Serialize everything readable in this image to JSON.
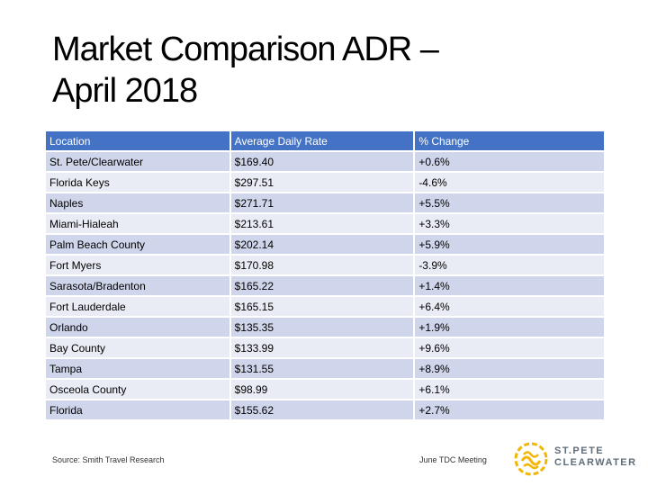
{
  "slide": {
    "title_line1": "Market Comparison ADR –",
    "title_line2": "April 2018"
  },
  "table": {
    "headers": [
      "Location",
      "Average Daily Rate",
      "% Change"
    ],
    "rows": [
      [
        "St. Pete/Clearwater",
        "$169.40",
        "+0.6%"
      ],
      [
        "Florida Keys",
        "$297.51",
        "-4.6%"
      ],
      [
        "Naples",
        "$271.71",
        "+5.5%"
      ],
      [
        "Miami-Hialeah",
        "$213.61",
        "+3.3%"
      ],
      [
        "Palm Beach County",
        "$202.14",
        "+5.9%"
      ],
      [
        "Fort Myers",
        "$170.98",
        "-3.9%"
      ],
      [
        "Sarasota/Bradenton",
        "$165.22",
        "+1.4%"
      ],
      [
        "Fort Lauderdale",
        "$165.15",
        "+6.4%"
      ],
      [
        "Orlando",
        "$135.35",
        "+1.9%"
      ],
      [
        "Bay County",
        "$133.99",
        "+9.6%"
      ],
      [
        "Tampa",
        "$131.55",
        "+8.9%"
      ],
      [
        "Osceola County",
        "$98.99",
        "+6.1%"
      ],
      [
        "Florida",
        "$155.62",
        "+2.7%"
      ]
    ]
  },
  "footer": {
    "source": "Source: Smith Travel Research",
    "meeting": "June TDC Meeting",
    "logo_line1": "ST.PETE",
    "logo_line2": "CLEARWATER"
  },
  "colors": {
    "header_bg": "#4472c4",
    "row_odd": "#cfd5ea",
    "row_even": "#e9ebf5",
    "logo_gold": "#f2b705",
    "logo_gray": "#5f6d7a"
  }
}
